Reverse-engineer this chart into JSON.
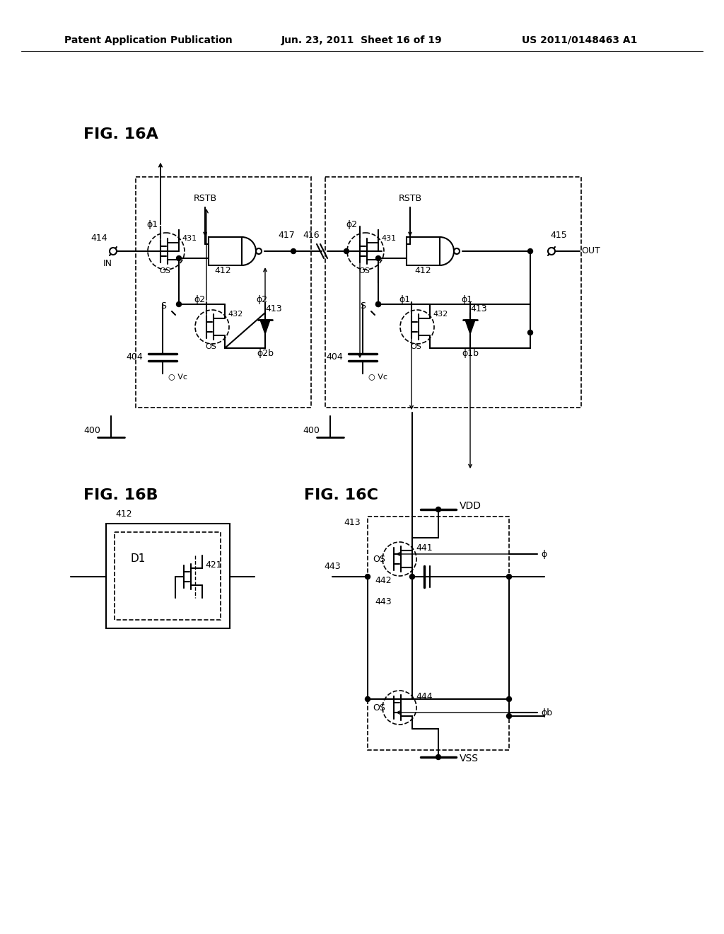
{
  "header_left": "Patent Application Publication",
  "header_mid": "Jun. 23, 2011  Sheet 16 of 19",
  "header_right": "US 2011/0148463 A1",
  "fig16a_label": "FIG. 16A",
  "fig16b_label": "FIG. 16B",
  "fig16c_label": "FIG. 16C",
  "bg_color": "#ffffff"
}
